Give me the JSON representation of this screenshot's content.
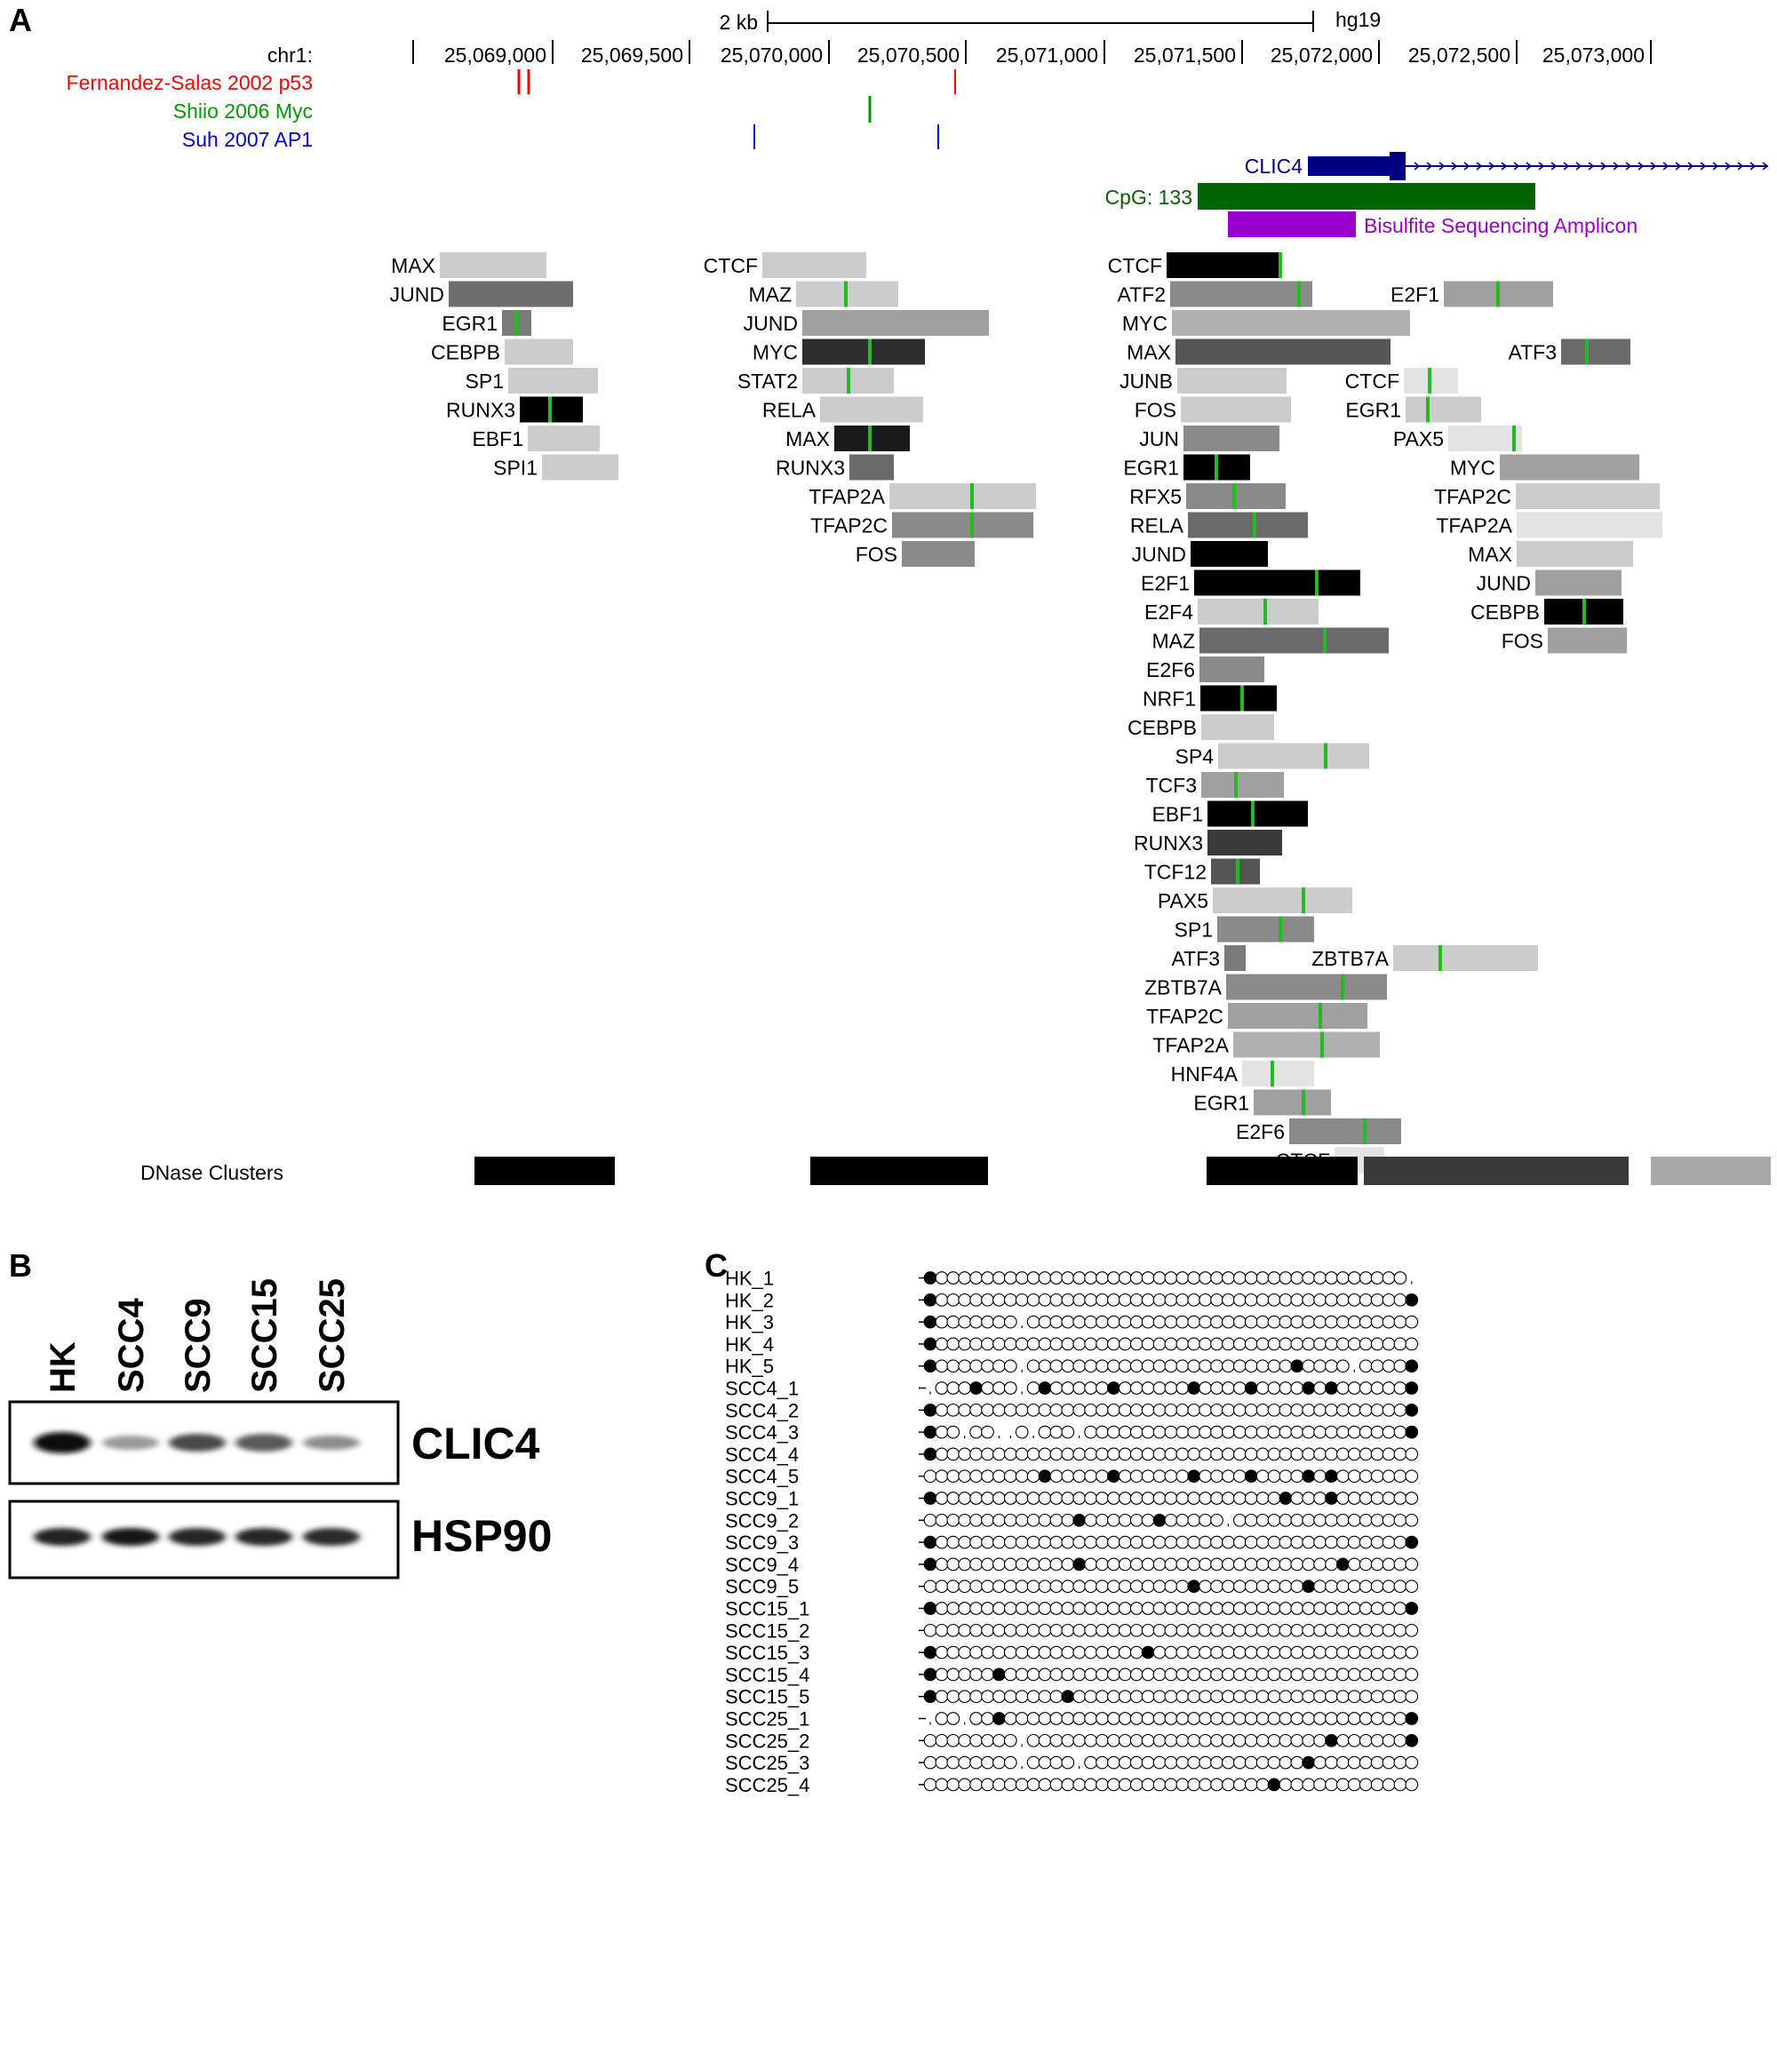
{
  "panels": {
    "a": "A",
    "b": "B",
    "c": "C"
  },
  "genome": {
    "scale_label": "2 kb",
    "assembly": "hg19",
    "chrom_label": "chr1:",
    "ticks": [
      "25,069,000",
      "25,069,500",
      "25,070,000",
      "25,070,500",
      "25,071,000",
      "25,071,500",
      "25,072,000",
      "25,072,500",
      "25,073,000"
    ]
  },
  "sites": [
    {
      "label": "Fernandez-Salas 2002 p53",
      "color": "#ff0000"
    },
    {
      "label": "Shiio 2006 Myc",
      "color": "#009a00"
    },
    {
      "label": "Suh 2007 AP1",
      "color": "#0000dd"
    }
  ],
  "features": {
    "gene": {
      "label": "CLIC4",
      "color": "#000080"
    },
    "cpg": {
      "label": "CpG: 133",
      "color": "#006400"
    },
    "amplicon": {
      "label": "Bisulfite Sequencing Amplicon",
      "color": "#9900cc"
    }
  },
  "tfbs": {
    "cluster1": [
      "MAX",
      "JUND",
      "EGR1",
      "CEBPB",
      "SP1",
      "RUNX3",
      "EBF1",
      "SPI1"
    ],
    "cluster2": [
      "CTCF",
      "MAZ",
      "JUND",
      "MYC",
      "STAT2",
      "RELA",
      "MAX",
      "RUNX3",
      "TFAP2A",
      "TFAP2C",
      "FOS"
    ],
    "cluster3": [
      "CTCF",
      "ATF2",
      "MYC",
      "MAX",
      "JUNB",
      "FOS",
      "JUN",
      "EGR1",
      "RFX5",
      "RELA",
      "JUND",
      "E2F1",
      "E2F4",
      "MAZ",
      "E2F6",
      "NRF1",
      "CEBPB",
      "SP4",
      "TCF3",
      "EBF1",
      "RUNX3",
      "TCF12",
      "PAX5",
      "SP1",
      "ATF3",
      "ZBTB7A",
      "TFAP2C",
      "TFAP2A",
      "HNF4A",
      "EGR1",
      "E2F6",
      "CTCF"
    ],
    "cluster4": [
      "E2F1",
      "ATF3",
      "CTCF",
      "EGR1",
      "PAX5",
      "MYC",
      "TFAP2C",
      "TFAP2A",
      "MAX",
      "JUND",
      "CEBPB",
      "FOS"
    ],
    "cluster4_zbtb7a": "ZBTB7A"
  },
  "dnase": {
    "label": "DNase Clusters"
  },
  "western": {
    "lanes": [
      "HK",
      "SCC4",
      "SCC9",
      "SCC15",
      "SCC25"
    ],
    "proteins": [
      "CLIC4",
      "HSP90"
    ]
  },
  "methylation": {
    "rows": [
      {
        "name": "HK_1",
        "filled": [
          0
        ],
        "missing": [
          42
        ],
        "start_dash": true
      },
      {
        "name": "HK_2",
        "filled": [
          0,
          42
        ],
        "missing": []
      },
      {
        "name": "HK_3",
        "filled": [
          0
        ],
        "missing": [
          8
        ]
      },
      {
        "name": "HK_4",
        "filled": [
          0
        ],
        "missing": []
      },
      {
        "name": "HK_5",
        "filled": [
          0,
          32,
          42
        ],
        "missing": [
          8,
          37
        ]
      },
      {
        "name": "SCC4_1",
        "filled": [
          4,
          10,
          16,
          23,
          28,
          33,
          35,
          42
        ],
        "missing": [
          0,
          8
        ]
      },
      {
        "name": "SCC4_2",
        "filled": [
          0,
          42
        ],
        "missing": []
      },
      {
        "name": "SCC4_3",
        "filled": [
          0,
          42
        ],
        "missing": [
          3,
          6,
          7,
          9,
          13
        ]
      },
      {
        "name": "SCC4_4",
        "filled": [
          0
        ],
        "missing": []
      },
      {
        "name": "SCC4_5",
        "filled": [
          10,
          16,
          23,
          28,
          33,
          35
        ],
        "missing": [],
        "start_dash": true
      },
      {
        "name": "SCC9_1",
        "filled": [
          0,
          31,
          35
        ],
        "missing": []
      },
      {
        "name": "SCC9_2",
        "filled": [
          13,
          20
        ],
        "missing": [
          26
        ],
        "start_dash": true
      },
      {
        "name": "SCC9_3",
        "filled": [
          0,
          42
        ],
        "missing": []
      },
      {
        "name": "SCC9_4",
        "filled": [
          0,
          13,
          36
        ],
        "missing": []
      },
      {
        "name": "SCC9_5",
        "filled": [
          23,
          33
        ],
        "missing": [],
        "start_dash": true
      },
      {
        "name": "SCC15_1",
        "filled": [
          0,
          42
        ],
        "missing": []
      },
      {
        "name": "SCC15_2",
        "filled": [],
        "missing": [],
        "start_dash": true
      },
      {
        "name": "SCC15_3",
        "filled": [
          0,
          19
        ],
        "missing": []
      },
      {
        "name": "SCC15_4",
        "filled": [
          0,
          6
        ],
        "missing": []
      },
      {
        "name": "SCC15_5",
        "filled": [
          0,
          12
        ],
        "missing": []
      },
      {
        "name": "SCC25_1",
        "filled": [
          6,
          42
        ],
        "missing": [
          0,
          3
        ],
        "start_dash": true
      },
      {
        "name": "SCC25_2",
        "filled": [
          35,
          42
        ],
        "missing": [
          8
        ],
        "start_dash": true
      },
      {
        "name": "SCC25_3",
        "filled": [
          33
        ],
        "missing": [
          8,
          13
        ],
        "start_dash": true
      },
      {
        "name": "SCC25_4",
        "filled": [
          30
        ],
        "missing": [],
        "start_dash": true
      }
    ]
  }
}
